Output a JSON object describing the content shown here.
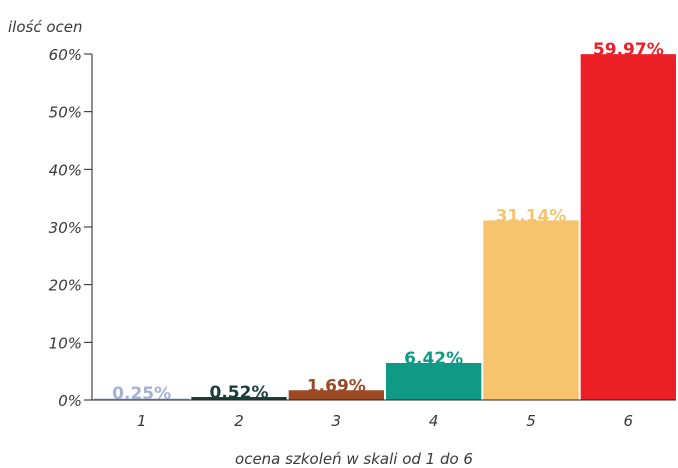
{
  "chart_data": {
    "type": "bar",
    "ylabel": "ilość ocen",
    "xlabel": "ocena szkoleń w skali od 1 do 6",
    "categories": [
      "1",
      "2",
      "3",
      "4",
      "5",
      "6"
    ],
    "values": [
      0.25,
      0.52,
      1.69,
      6.42,
      31.14,
      59.97
    ],
    "data_labels": [
      "0.25%",
      "0.52%",
      "1.69%",
      "6.42%",
      "31.14%",
      "59.97%"
    ],
    "colors": [
      "#a3b1d3",
      "#1d3e35",
      "#9c4a24",
      "#0f9a86",
      "#f6c46c",
      "#ec1f26"
    ],
    "ylim": [
      0,
      60
    ],
    "yticks": [
      0,
      10,
      20,
      30,
      40,
      50,
      60
    ],
    "ytick_labels": [
      "0%",
      "10%",
      "20%",
      "30%",
      "40%",
      "50%",
      "60%"
    ],
    "grid": false,
    "legend": "none"
  }
}
